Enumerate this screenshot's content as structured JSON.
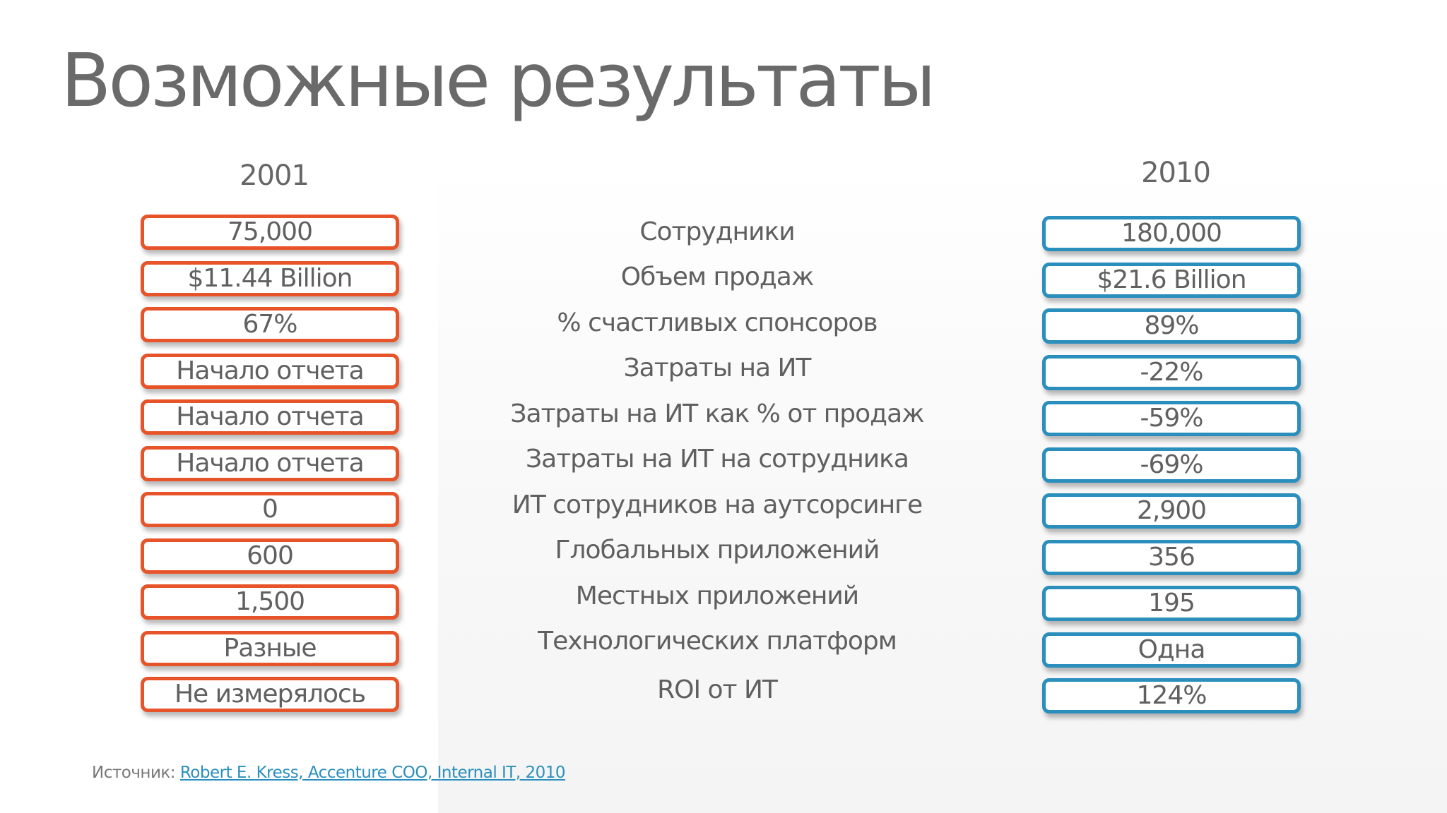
{
  "title": "Возможные результаты",
  "years": {
    "left": "2001",
    "right": "2010"
  },
  "rows": [
    {
      "left": "75,000",
      "label": "Сотрудники",
      "right": "180,000"
    },
    {
      "left": "$11.44 Billion",
      "label": "Объем продаж",
      "right": "$21.6 Billion"
    },
    {
      "left": "67%",
      "label": "% счастливых спонсоров",
      "right": "89%"
    },
    {
      "left": "Начало отчета",
      "label": "Затраты на ИТ",
      "right": "-22%"
    },
    {
      "left": "Начало отчета",
      "label": "Затраты на ИТ как % от продаж",
      "right": "-59%"
    },
    {
      "left": "Начало отчета",
      "label": "Затраты на ИТ на сотрудника",
      "right": "-69%"
    },
    {
      "left": "0",
      "label": "ИТ сотрудников на аутсорсинге",
      "right": "2,900"
    },
    {
      "left": "600",
      "label": "Глобальных приложений",
      "right": "356"
    },
    {
      "left": "1,500",
      "label": "Местных приложений",
      "right": "195"
    },
    {
      "left": "Разные",
      "label": "Технологических платформ",
      "right": "Одна"
    },
    {
      "left": "Не измерялось",
      "label": "ROI от ИТ",
      "right": "124%"
    }
  ],
  "source": {
    "prefix": "Источник:",
    "link_text": "Robert E. Kress, Accenture COO, Internal IT, 2010"
  },
  "colors": {
    "orange_border": "#e8542a",
    "blue_border": "#2a8fbd"
  }
}
